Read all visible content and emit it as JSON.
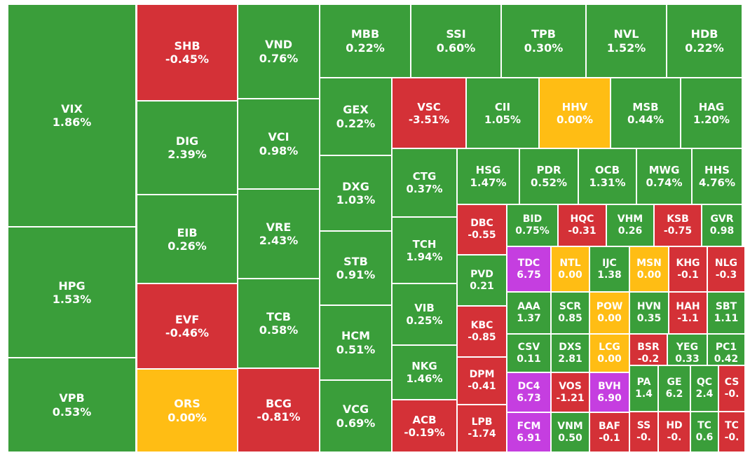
{
  "chart_data": {
    "type": "treemap",
    "title": "",
    "colors": {
      "up": "#3a9e3a",
      "down": "#d43137",
      "unchanged": "#ffbd14",
      "ceiling": "#c53ee0"
    },
    "cells": [
      {
        "symbol": "VIX",
        "change": "1.86%",
        "status": "up"
      },
      {
        "symbol": "HPG",
        "change": "1.53%",
        "status": "up"
      },
      {
        "symbol": "VPB",
        "change": "0.53%",
        "status": "up"
      },
      {
        "symbol": "SHB",
        "change": "-0.45%",
        "status": "down"
      },
      {
        "symbol": "DIG",
        "change": "2.39%",
        "status": "up"
      },
      {
        "symbol": "EIB",
        "change": "0.26%",
        "status": "up"
      },
      {
        "symbol": "EVF",
        "change": "-0.46%",
        "status": "down"
      },
      {
        "symbol": "ORS",
        "change": "0.00%",
        "status": "unchanged"
      },
      {
        "symbol": "VND",
        "change": "0.76%",
        "status": "up"
      },
      {
        "symbol": "VCI",
        "change": "0.98%",
        "status": "up"
      },
      {
        "symbol": "VRE",
        "change": "2.43%",
        "status": "up"
      },
      {
        "symbol": "TCB",
        "change": "0.58%",
        "status": "up"
      },
      {
        "symbol": "BCG",
        "change": "-0.81%",
        "status": "down"
      },
      {
        "symbol": "MBB",
        "change": "0.22%",
        "status": "up"
      },
      {
        "symbol": "SSI",
        "change": "0.60%",
        "status": "up"
      },
      {
        "symbol": "TPB",
        "change": "0.30%",
        "status": "up"
      },
      {
        "symbol": "NVL",
        "change": "1.52%",
        "status": "up"
      },
      {
        "symbol": "HDB",
        "change": "0.22%",
        "status": "up"
      },
      {
        "symbol": "GEX",
        "change": "0.22%",
        "status": "up"
      },
      {
        "symbol": "DXG",
        "change": "1.03%",
        "status": "up"
      },
      {
        "symbol": "STB",
        "change": "0.91%",
        "status": "up"
      },
      {
        "symbol": "HCM",
        "change": "0.51%",
        "status": "up"
      },
      {
        "symbol": "VCG",
        "change": "0.69%",
        "status": "up"
      },
      {
        "symbol": "VSC",
        "change": "-3.51%",
        "status": "down"
      },
      {
        "symbol": "CII",
        "change": "1.05%",
        "status": "up"
      },
      {
        "symbol": "HHV",
        "change": "0.00%",
        "status": "unchanged"
      },
      {
        "symbol": "MSB",
        "change": "0.44%",
        "status": "up"
      },
      {
        "symbol": "HAG",
        "change": "1.20%",
        "status": "up"
      },
      {
        "symbol": "CTG",
        "change": "0.37%",
        "status": "up"
      },
      {
        "symbol": "TCH",
        "change": "1.94%",
        "status": "up"
      },
      {
        "symbol": "VIB",
        "change": "0.25%",
        "status": "up"
      },
      {
        "symbol": "NKG",
        "change": "1.46%",
        "status": "up"
      },
      {
        "symbol": "ACB",
        "change": "-0.19%",
        "status": "down"
      },
      {
        "symbol": "HSG",
        "change": "1.47%",
        "status": "up"
      },
      {
        "symbol": "PDR",
        "change": "0.52%",
        "status": "up"
      },
      {
        "symbol": "OCB",
        "change": "1.31%",
        "status": "up"
      },
      {
        "symbol": "MWG",
        "change": "0.74%",
        "status": "up"
      },
      {
        "symbol": "HHS",
        "change": "4.76%",
        "status": "up"
      },
      {
        "symbol": "DBC",
        "change": "-0.55",
        "status": "down"
      },
      {
        "symbol": "PVD",
        "change": "0.21",
        "status": "up"
      },
      {
        "symbol": "KBC",
        "change": "-0.85",
        "status": "down"
      },
      {
        "symbol": "DPM",
        "change": "-0.41",
        "status": "down"
      },
      {
        "symbol": "LPB",
        "change": "-1.74",
        "status": "down"
      },
      {
        "symbol": "BID",
        "change": "0.75%",
        "status": "up"
      },
      {
        "symbol": "HQC",
        "change": "-0.31",
        "status": "down"
      },
      {
        "symbol": "VHM",
        "change": "0.26",
        "status": "up"
      },
      {
        "symbol": "KSB",
        "change": "-0.75",
        "status": "down"
      },
      {
        "symbol": "GVR",
        "change": "0.98",
        "status": "up"
      },
      {
        "symbol": "TDC",
        "change": "6.75",
        "status": "ceiling"
      },
      {
        "symbol": "NTL",
        "change": "0.00",
        "status": "unchanged"
      },
      {
        "symbol": "IJC",
        "change": "1.38",
        "status": "up"
      },
      {
        "symbol": "MSN",
        "change": "0.00",
        "status": "unchanged"
      },
      {
        "symbol": "KHG",
        "change": "-0.1",
        "status": "down"
      },
      {
        "symbol": "NLG",
        "change": "-0.3",
        "status": "down"
      },
      {
        "symbol": "AAA",
        "change": "1.37",
        "status": "up"
      },
      {
        "symbol": "SCR",
        "change": "0.85",
        "status": "up"
      },
      {
        "symbol": "POW",
        "change": "0.00",
        "status": "unchanged"
      },
      {
        "symbol": "HVN",
        "change": "0.35",
        "status": "up"
      },
      {
        "symbol": "HAH",
        "change": "-1.1",
        "status": "down"
      },
      {
        "symbol": "SBT",
        "change": "1.11",
        "status": "up"
      },
      {
        "symbol": "CSV",
        "change": "0.11",
        "status": "up"
      },
      {
        "symbol": "DXS",
        "change": "2.81",
        "status": "up"
      },
      {
        "symbol": "LCG",
        "change": "0.00",
        "status": "unchanged"
      },
      {
        "symbol": "BSR",
        "change": "-0.2",
        "status": "down"
      },
      {
        "symbol": "YEG",
        "change": "0.33",
        "status": "up"
      },
      {
        "symbol": "PC1",
        "change": "0.42",
        "status": "up"
      },
      {
        "symbol": "DC4",
        "change": "6.73",
        "status": "ceiling"
      },
      {
        "symbol": "VOS",
        "change": "-1.21",
        "status": "down"
      },
      {
        "symbol": "BVH",
        "change": "6.90",
        "status": "ceiling"
      },
      {
        "symbol": "PA",
        "change": "1.4",
        "status": "up"
      },
      {
        "symbol": "GE",
        "change": "6.2",
        "status": "up"
      },
      {
        "symbol": "QC",
        "change": "2.4",
        "status": "up"
      },
      {
        "symbol": "CS",
        "change": "-0.",
        "status": "down"
      },
      {
        "symbol": "FCM",
        "change": "6.91",
        "status": "ceiling"
      },
      {
        "symbol": "VNM",
        "change": "0.50",
        "status": "up"
      },
      {
        "symbol": "BAF",
        "change": "-0.1",
        "status": "down"
      },
      {
        "symbol": "SS",
        "change": "-0.",
        "status": "down"
      },
      {
        "symbol": "HD",
        "change": "-0.",
        "status": "down"
      },
      {
        "symbol": "TC",
        "change": "0.6",
        "status": "up"
      },
      {
        "symbol": "TC",
        "change": "-0.",
        "status": "down"
      }
    ]
  }
}
